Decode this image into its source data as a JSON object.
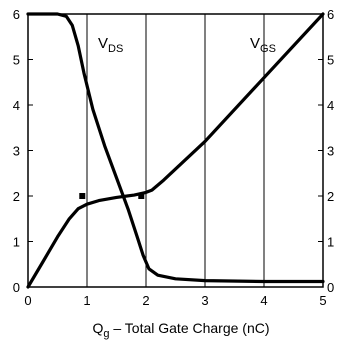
{
  "chart_data": {
    "type": "line",
    "xlabel_main": "Q",
    "xlabel_sub": "g",
    "xlabel_rest": " – Total Gate Charge (nC)",
    "xlim": [
      0,
      5
    ],
    "ylim": [
      0,
      6
    ],
    "y2lim": [
      0,
      6
    ],
    "x_ticks": [
      "0",
      "1",
      "2",
      "3",
      "4",
      "5"
    ],
    "y_ticks": [
      "0",
      "1",
      "2",
      "3",
      "4",
      "5",
      "6"
    ],
    "y2_ticks": [
      "0",
      "1",
      "2",
      "3",
      "4",
      "5",
      "6"
    ],
    "grid": "vertical",
    "series": [
      {
        "name_main": "V",
        "name_sub": "DS",
        "x": [
          0,
          0.5,
          0.65,
          0.75,
          0.85,
          0.95,
          1.1,
          1.3,
          1.5,
          1.7,
          1.85,
          1.95,
          2.05,
          2.2,
          2.5,
          3,
          4,
          5
        ],
        "y": [
          6,
          6,
          5.95,
          5.75,
          5.3,
          4.7,
          3.9,
          3.1,
          2.4,
          1.7,
          1.1,
          0.7,
          0.4,
          0.26,
          0.18,
          0.14,
          0.12,
          0.12
        ]
      },
      {
        "name_main": "V",
        "name_sub": "GS",
        "x": [
          0,
          0.25,
          0.5,
          0.7,
          0.85,
          1.0,
          1.2,
          1.5,
          1.8,
          2.0,
          2.1,
          2.3,
          3,
          4,
          5
        ],
        "y": [
          0,
          0.55,
          1.1,
          1.5,
          1.72,
          1.82,
          1.9,
          1.97,
          2.02,
          2.08,
          2.13,
          2.35,
          3.2,
          4.6,
          6.0
        ]
      }
    ],
    "markers": [
      {
        "x": 0.92,
        "y": 2.0
      },
      {
        "x": 1.92,
        "y": 2.0
      }
    ]
  }
}
